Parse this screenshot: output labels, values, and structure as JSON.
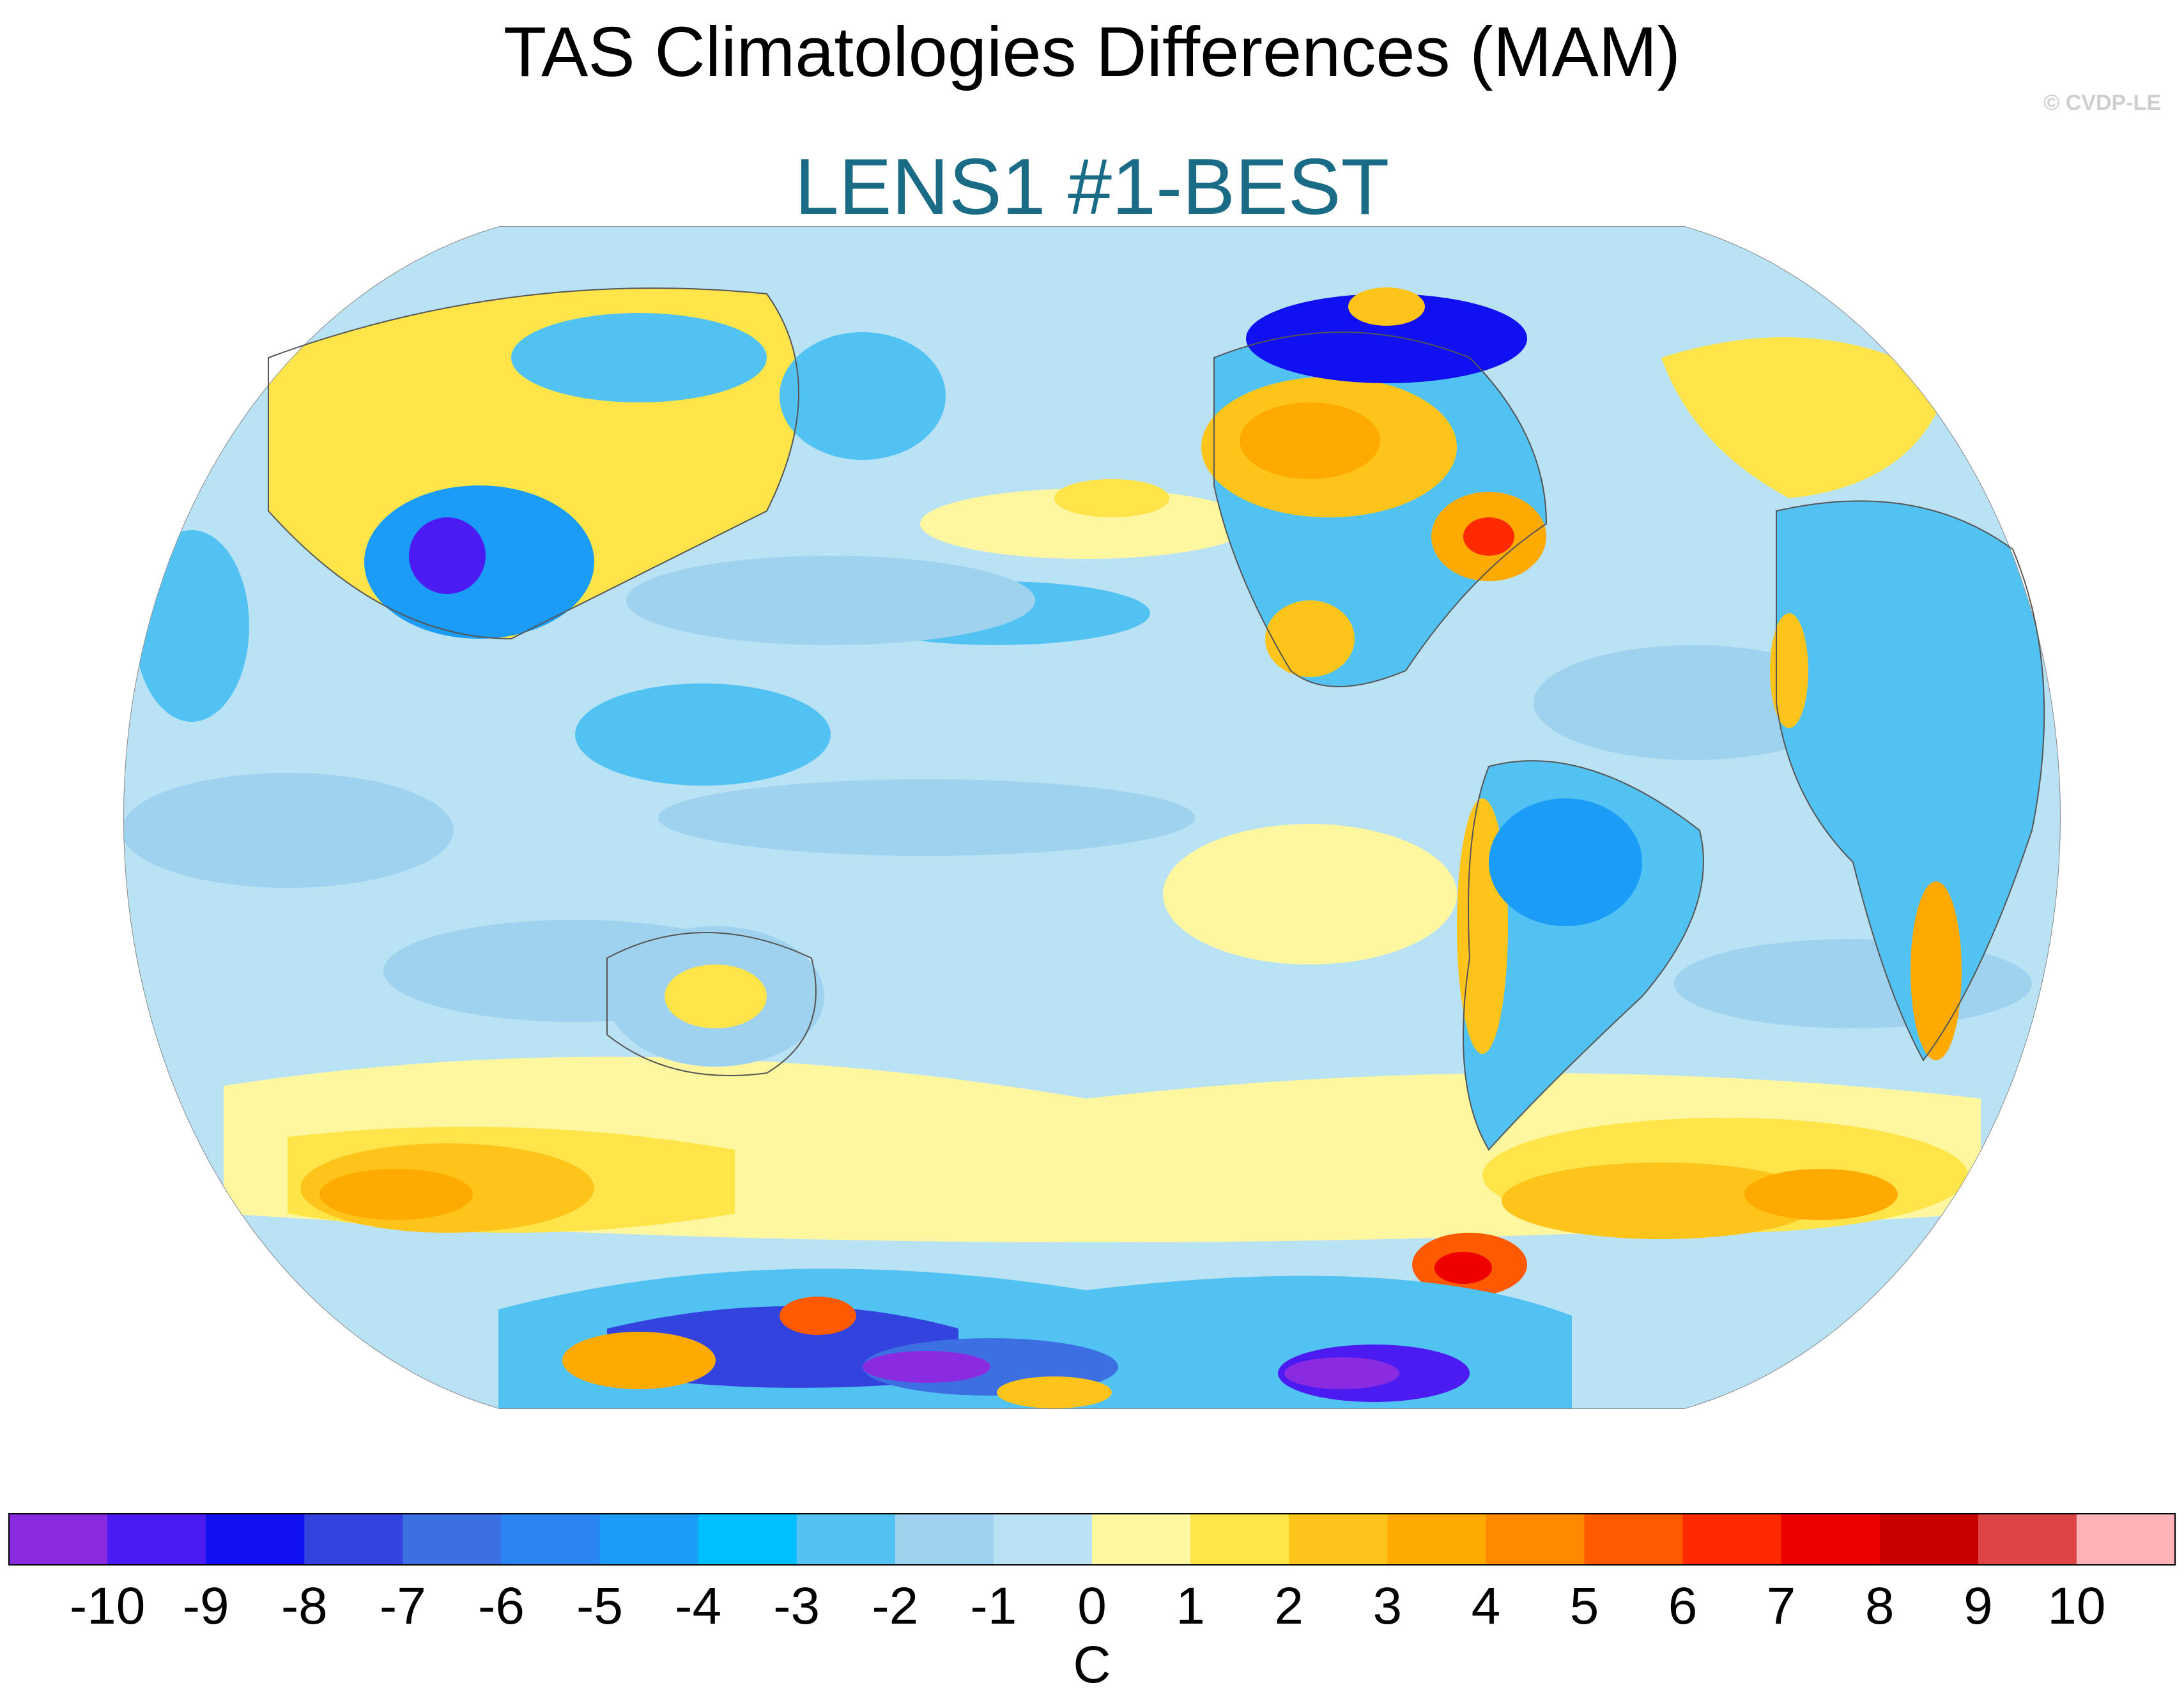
{
  "title": "TAS Climatologies Differences (MAM)",
  "subtitle": "LENS1 #1-BEST",
  "subtitle_color": "#1a6b85",
  "watermark": "© CVDP-LE",
  "map": {
    "projection": "robinson",
    "ocean_base_color": "#b9e2f5",
    "coastline_color": "#555555"
  },
  "colorbar": {
    "unit": "C",
    "tick_labels": [
      "-10",
      "-9",
      "-8",
      "-7",
      "-6",
      "-5",
      "-4",
      "-3",
      "-2",
      "-1",
      "0",
      "1",
      "2",
      "3",
      "4",
      "5",
      "6",
      "7",
      "8",
      "9",
      "10"
    ],
    "colors": [
      "#8a2be2",
      "#4b1bf2",
      "#1010f0",
      "#3344de",
      "#3b6fe2",
      "#2a85f2",
      "#1b9cf7",
      "#00bfff",
      "#52c2f2",
      "#9fd2ef",
      "#b9e2f5",
      "#fff7a0",
      "#ffe44a",
      "#ffc41a",
      "#ffaa00",
      "#ff8a00",
      "#ff5a00",
      "#ff2a00",
      "#ee0000",
      "#c80000",
      "#dd4444",
      "#ffb3b8"
    ]
  }
}
